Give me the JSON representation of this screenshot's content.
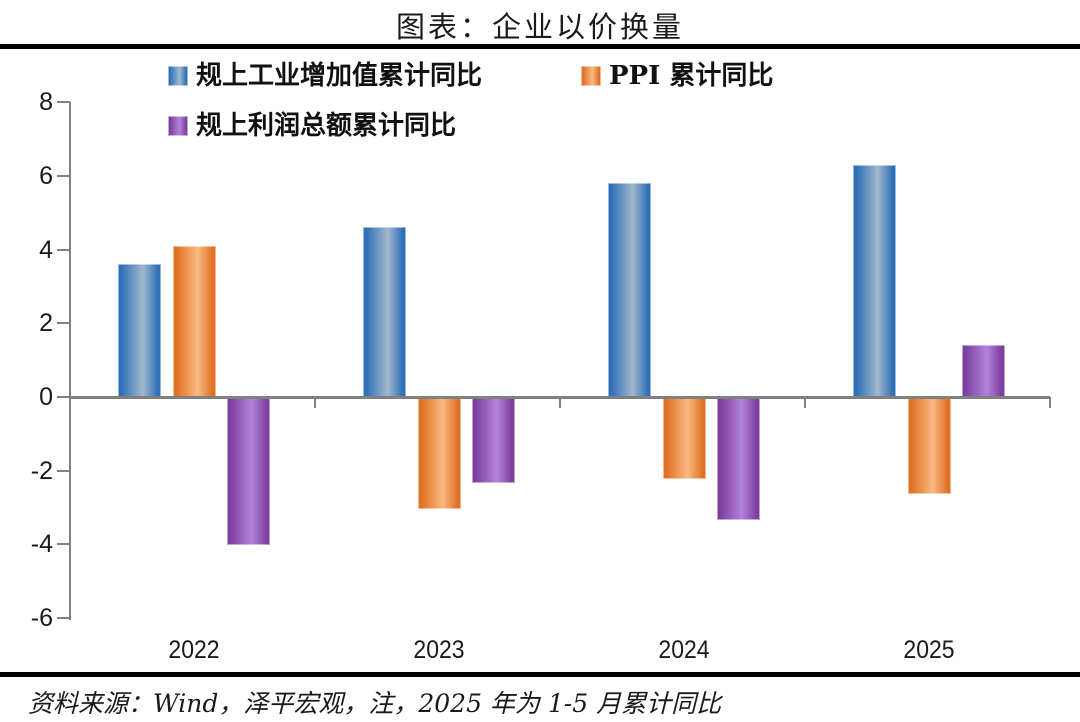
{
  "title": "图表：企业以价换量",
  "source_note": "资料来源：Wind，泽平宏观，注，2025 年为 1-5 月累计同比",
  "rule_color": "#000000",
  "axis_color": "#808080",
  "chart_data": {
    "type": "bar",
    "title": "图表：企业以价换量",
    "categories": [
      "2022",
      "2023",
      "2024",
      "2025"
    ],
    "series": [
      {
        "name": "规上工业增加值累计同比",
        "color": "#2E6FB7",
        "color_light": "#A2B8CD",
        "values": [
          3.6,
          4.6,
          5.8,
          6.3
        ]
      },
      {
        "name": "PPI 累计同比",
        "color": "#E07022",
        "color_light": "#F8B982",
        "values": [
          4.1,
          -3.0,
          -2.2,
          -2.6
        ]
      },
      {
        "name": "规上利润总额累计同比",
        "color": "#7D3E9D",
        "color_light": "#B283DB",
        "values": [
          -4.0,
          -2.3,
          -3.3,
          1.4
        ]
      }
    ],
    "xlabel": "",
    "ylabel": "",
    "ylim": [
      -6,
      8
    ],
    "yticks": [
      8,
      6,
      4,
      2,
      0,
      -2,
      -4,
      -6
    ],
    "grid": false,
    "legend_position": "top"
  }
}
